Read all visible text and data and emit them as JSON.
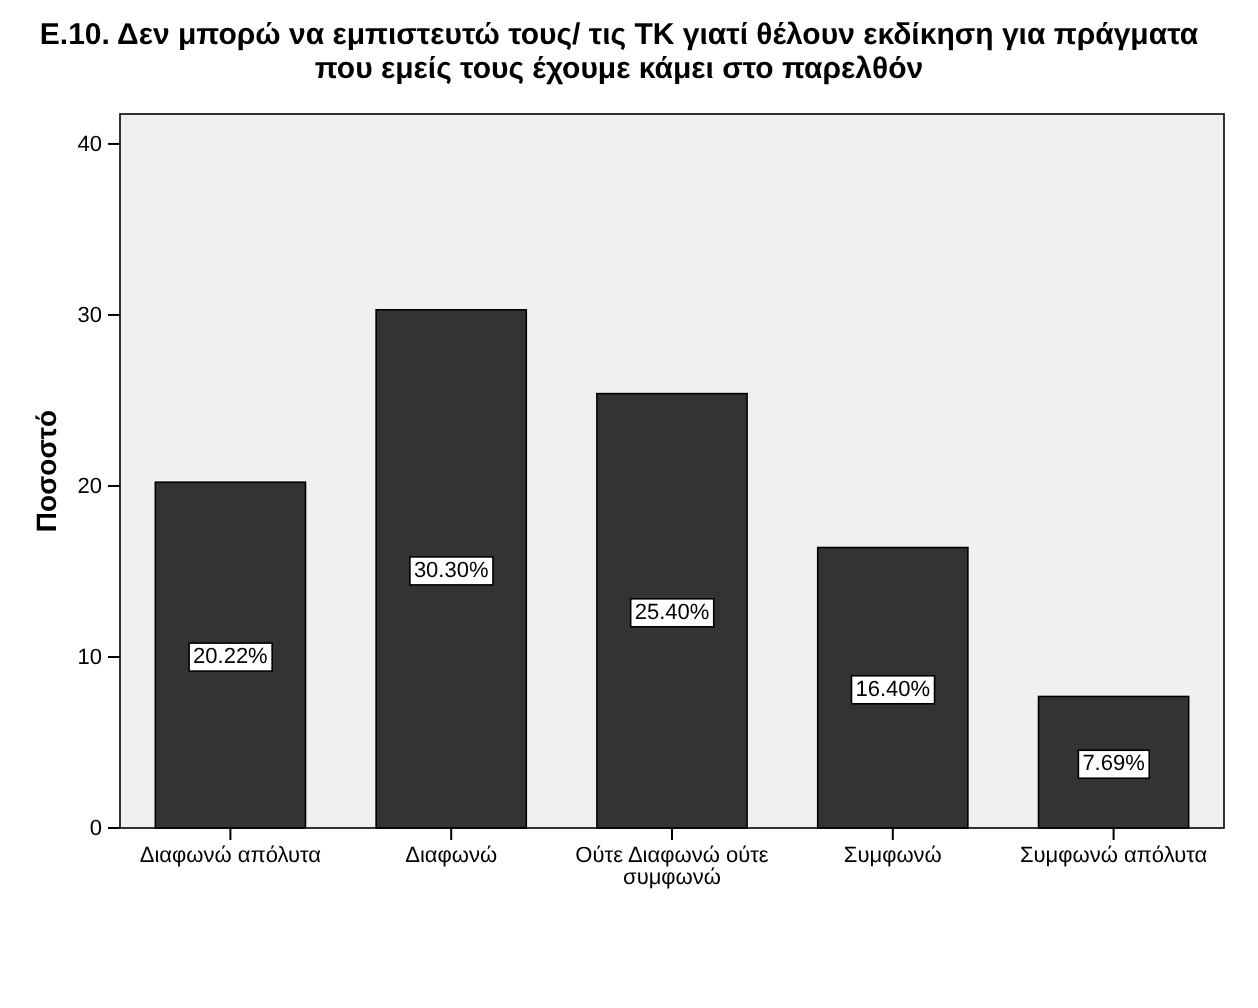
{
  "chart_data": {
    "type": "bar",
    "title": "Ε.10. Δεν μπορώ να εμπιστευτώ τους/ τις ΤΚ γιατί θέλουν εκδίκηση για πράγματα που εμείς τους έχουμε κάμει στο παρελθόν",
    "ylabel": "Ποσοστό",
    "categories": [
      "Διαφωνώ απόλυτα",
      "Διαφωνώ",
      "Ούτε Διαφωνώ ούτε συμφωνώ",
      "Συμφωνώ",
      "Συμφωνώ απόλυτα"
    ],
    "values": [
      20.22,
      30.3,
      25.4,
      16.4,
      7.69
    ],
    "value_labels": [
      "20.22%",
      "30.30%",
      "25.40%",
      "16.40%",
      "7.69%"
    ],
    "color": "#333333",
    "ylim": [
      0,
      41.75
    ],
    "yticks": [
      0,
      10,
      20,
      30,
      40
    ],
    "grid": false
  }
}
